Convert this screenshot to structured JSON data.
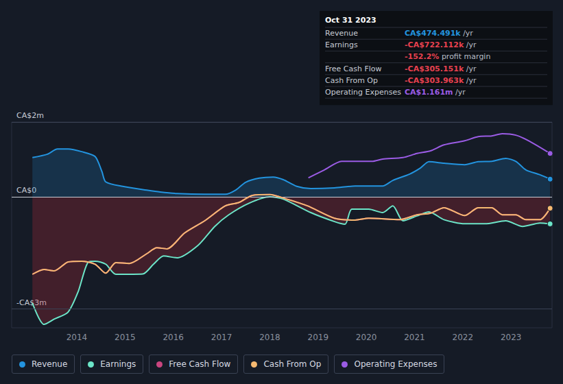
{
  "chart_data": {
    "type": "line",
    "xlim": [
      2012.65,
      2023.85
    ],
    "xticks": [
      2014,
      2015,
      2016,
      2017,
      2018,
      2019,
      2020,
      2021,
      2022,
      2023
    ],
    "ylim": [
      -3.5,
      2
    ],
    "yticks": [
      {
        "value": 2,
        "label": "CA$2m"
      },
      {
        "value": 0,
        "label": "CA$0"
      },
      {
        "value": -3,
        "label": "-CA$3m"
      }
    ],
    "grid": true,
    "legend": "bottom",
    "series": [
      {
        "name": "Revenue",
        "color": "#2394df",
        "x": [
          2013.08,
          2013.39,
          2013.6,
          2013.82,
          2014.1,
          2014.38,
          2014.52,
          2014.6,
          2014.95,
          2015.45,
          2015.73,
          2016.08,
          2016.65,
          2017.08,
          2017.29,
          2017.5,
          2017.78,
          2018.07,
          2018.28,
          2018.56,
          2018.85,
          2019.34,
          2019.77,
          2020.34,
          2020.55,
          2020.9,
          2021.12,
          2021.3,
          2021.61,
          2022.04,
          2022.32,
          2022.6,
          2022.89,
          2023.1,
          2023.31,
          2023.6,
          2023.81
        ],
        "values": [
          1.05,
          1.14,
          1.28,
          1.28,
          1.21,
          1.08,
          0.68,
          0.4,
          0.28,
          0.18,
          0.13,
          0.09,
          0.07,
          0.07,
          0.18,
          0.39,
          0.5,
          0.53,
          0.46,
          0.28,
          0.22,
          0.24,
          0.29,
          0.29,
          0.44,
          0.61,
          0.77,
          0.94,
          0.9,
          0.86,
          0.94,
          0.95,
          1.03,
          0.95,
          0.72,
          0.59,
          0.474
        ]
      },
      {
        "name": "Earnings",
        "color": "#6ce5c8",
        "x": [
          2013.08,
          2013.32,
          2013.53,
          2013.82,
          2014.03,
          2014.24,
          2014.38,
          2014.6,
          2014.81,
          2015.37,
          2015.59,
          2015.8,
          2016.08,
          2016.51,
          2016.86,
          2017.15,
          2017.57,
          2018.0,
          2018.28,
          2018.85,
          2019.34,
          2019.56,
          2019.7,
          2020.05,
          2020.34,
          2020.55,
          2020.76,
          2021.05,
          2021.3,
          2021.61,
          2022.04,
          2022.46,
          2022.89,
          2023.24,
          2023.6,
          2023.81
        ],
        "values": [
          -2.84,
          -3.41,
          -3.27,
          -3.08,
          -2.53,
          -1.74,
          -1.72,
          -1.8,
          -2.07,
          -2.06,
          -1.8,
          -1.58,
          -1.63,
          -1.3,
          -0.79,
          -0.48,
          -0.17,
          0.0,
          -0.06,
          -0.42,
          -0.66,
          -0.73,
          -0.33,
          -0.33,
          -0.42,
          -0.24,
          -0.64,
          -0.51,
          -0.4,
          -0.61,
          -0.72,
          -0.72,
          -0.64,
          -0.79,
          -0.7,
          -0.722
        ]
      },
      {
        "name": "Free Cash Flow",
        "color": "#c9457f",
        "x": [
          2013.08,
          2013.32,
          2013.53,
          2013.82,
          2014.1,
          2014.38,
          2014.6,
          2014.81,
          2015.09,
          2015.45,
          2015.66,
          2015.87,
          2016.23,
          2016.65,
          2017.08,
          2017.36,
          2017.64,
          2018.0,
          2018.35,
          2018.78,
          2019.34,
          2019.77,
          2020.05,
          2020.69,
          2021.05,
          2021.33,
          2021.61,
          2022.04,
          2022.32,
          2022.6,
          2022.82,
          2023.1,
          2023.31,
          2023.6,
          2023.81
        ],
        "values": [
          -2.07,
          -1.94,
          -1.98,
          -1.74,
          -1.72,
          -1.8,
          -2.04,
          -1.76,
          -1.78,
          -1.52,
          -1.36,
          -1.39,
          -0.97,
          -0.64,
          -0.24,
          -0.15,
          0.04,
          0.06,
          -0.06,
          -0.24,
          -0.57,
          -0.62,
          -0.57,
          -0.61,
          -0.48,
          -0.44,
          -0.29,
          -0.5,
          -0.29,
          -0.29,
          -0.48,
          -0.48,
          -0.61,
          -0.61,
          -0.305
        ]
      },
      {
        "name": "Cash From Op",
        "color": "#f5b971",
        "x": [
          2013.08,
          2013.32,
          2013.53,
          2013.82,
          2014.1,
          2014.38,
          2014.6,
          2014.81,
          2015.09,
          2015.45,
          2015.66,
          2015.87,
          2016.23,
          2016.65,
          2017.08,
          2017.36,
          2017.64,
          2018.0,
          2018.35,
          2018.78,
          2019.34,
          2019.77,
          2020.05,
          2020.69,
          2021.05,
          2021.33,
          2021.61,
          2022.04,
          2022.32,
          2022.6,
          2022.82,
          2023.1,
          2023.31,
          2023.6,
          2023.81
        ],
        "values": [
          -2.07,
          -1.94,
          -1.98,
          -1.74,
          -1.72,
          -1.8,
          -2.04,
          -1.76,
          -1.78,
          -1.52,
          -1.36,
          -1.39,
          -0.97,
          -0.64,
          -0.24,
          -0.15,
          0.04,
          0.06,
          -0.06,
          -0.24,
          -0.57,
          -0.62,
          -0.57,
          -0.61,
          -0.48,
          -0.44,
          -0.29,
          -0.5,
          -0.29,
          -0.29,
          -0.48,
          -0.48,
          -0.61,
          -0.61,
          -0.304
        ]
      },
      {
        "name": "Operating Expenses",
        "color": "#9b5ce5",
        "x": [
          2018.8,
          2019.13,
          2019.49,
          2020.12,
          2020.34,
          2020.76,
          2021.05,
          2021.33,
          2021.61,
          2022.04,
          2022.32,
          2022.6,
          2022.82,
          2023.1,
          2023.38,
          2023.81
        ],
        "values": [
          0.51,
          0.72,
          0.95,
          0.95,
          1.01,
          1.05,
          1.16,
          1.23,
          1.39,
          1.5,
          1.61,
          1.63,
          1.69,
          1.65,
          1.49,
          1.161
        ]
      }
    ],
    "annotations": [
      {
        "title": "Oct 31 2023",
        "rows": [
          {
            "label": "Revenue",
            "value": "CA$474.491k",
            "suffix": "/yr",
            "color": "#2394df"
          },
          {
            "label": "Earnings",
            "value": "-CA$722.112k",
            "suffix": "/yr",
            "color": "#e8414f"
          },
          {
            "value": "-152.2%",
            "suffix": "profit margin",
            "color": "#e8414f"
          },
          {
            "label": "Free Cash Flow",
            "value": "-CA$305.151k",
            "suffix": "/yr",
            "color": "#e8414f"
          },
          {
            "label": "Cash From Op",
            "value": "-CA$303.963k",
            "suffix": "/yr",
            "color": "#e8414f"
          },
          {
            "label": "Operating Expenses",
            "value": "CA$1.161m",
            "suffix": "/yr",
            "color": "#9b5ce5"
          }
        ]
      }
    ]
  }
}
